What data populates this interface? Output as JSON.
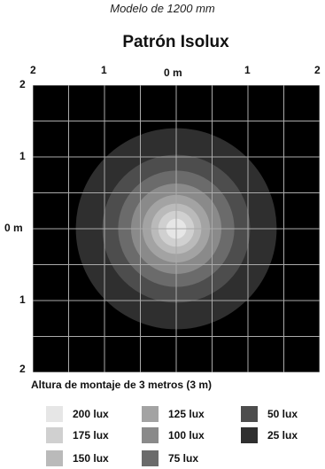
{
  "header": {
    "subtitle": "Modelo de 1200 mm",
    "title": "Patrón Isolux"
  },
  "axes": {
    "top_ticks": [
      "2",
      "1",
      "0 m",
      "1",
      "2"
    ],
    "left_ticks": [
      "2",
      "1",
      "0 m",
      "1",
      "2"
    ],
    "caption": "Altura de montaje de 3 metros (3 m)"
  },
  "chart_data": {
    "type": "heatmap",
    "xlim": [
      -2,
      2
    ],
    "ylim": [
      -2,
      2
    ],
    "grid": true,
    "background": "#000000",
    "grid_color": "#aaaaaa",
    "contours": [
      {
        "lux": 25,
        "radius_m": 1.4,
        "color": "#2f2f2f"
      },
      {
        "lux": 50,
        "radius_m": 1.03,
        "color": "#4d4d4d"
      },
      {
        "lux": 75,
        "radius_m": 0.81,
        "color": "#6b6b6b"
      },
      {
        "lux": 100,
        "radius_m": 0.63,
        "color": "#8a8a8a"
      },
      {
        "lux": 125,
        "radius_m": 0.47,
        "color": "#a3a3a3"
      },
      {
        "lux": 150,
        "radius_m": 0.35,
        "color": "#bababa"
      },
      {
        "lux": 175,
        "radius_m": 0.25,
        "color": "#d0d0d0"
      },
      {
        "lux": 200,
        "radius_m": 0.14,
        "color": "#e6e6e6"
      }
    ]
  },
  "legend": {
    "items": [
      {
        "label": "200 lux",
        "color": "#e6e6e6"
      },
      {
        "label": "175 lux",
        "color": "#d0d0d0"
      },
      {
        "label": "150 lux",
        "color": "#bababa"
      },
      {
        "label": "125 lux",
        "color": "#a3a3a3"
      },
      {
        "label": "100 lux",
        "color": "#8a8a8a"
      },
      {
        "label": "75 lux",
        "color": "#6b6b6b"
      },
      {
        "label": "50 lux",
        "color": "#4d4d4d"
      },
      {
        "label": "25 lux",
        "color": "#2f2f2f"
      }
    ]
  }
}
